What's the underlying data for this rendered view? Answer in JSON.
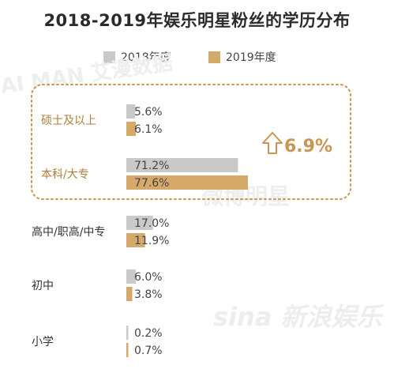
{
  "chart_data": {
    "type": "bar",
    "orientation": "horizontal",
    "title": "2018-2019年娱乐明星粉丝的学历分布",
    "categories": [
      "硕士及以上",
      "本科/大专",
      "高中/职高/中专",
      "初中",
      "小学"
    ],
    "series": [
      {
        "name": "2018年度",
        "values": [
          5.6,
          71.2,
          17.0,
          6.0,
          0.2
        ],
        "labels": [
          "5.6%",
          "71.2%",
          "17.0%",
          "6.0%",
          "0.2%"
        ],
        "color": "#c9c9c9"
      },
      {
        "name": "2019年度",
        "values": [
          6.1,
          77.6,
          11.9,
          3.8,
          0.7
        ],
        "labels": [
          "6.1%",
          "77.6%",
          "11.9%",
          "3.8%",
          "0.7%"
        ],
        "color": "#d5a96a"
      }
    ],
    "highlight": {
      "categories": [
        "硕士及以上",
        "本科/大专"
      ],
      "text": "6.9%",
      "color": "#c9964f"
    },
    "legend": "top-center",
    "grid": false
  },
  "watermarks": [
    "AI MAN 艾漫数据",
    "微博明星",
    "sina 新浪娱乐"
  ]
}
